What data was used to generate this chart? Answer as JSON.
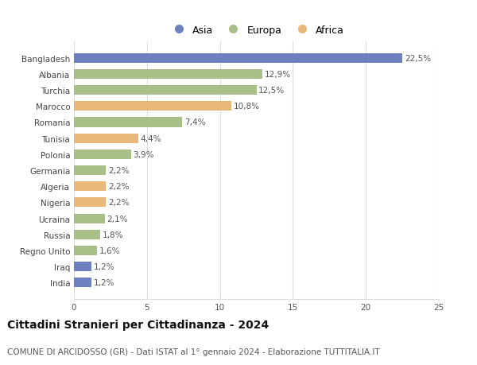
{
  "categories": [
    "Bangladesh",
    "Albania",
    "Turchia",
    "Marocco",
    "Romania",
    "Tunisia",
    "Polonia",
    "Germania",
    "Algeria",
    "Nigeria",
    "Ucraina",
    "Russia",
    "Regno Unito",
    "Iraq",
    "India"
  ],
  "values": [
    22.5,
    12.9,
    12.5,
    10.8,
    7.4,
    4.4,
    3.9,
    2.2,
    2.2,
    2.2,
    2.1,
    1.8,
    1.6,
    1.2,
    1.2
  ],
  "labels": [
    "22,5%",
    "12,9%",
    "12,5%",
    "10,8%",
    "7,4%",
    "4,4%",
    "3,9%",
    "2,2%",
    "2,2%",
    "2,2%",
    "2,1%",
    "1,8%",
    "1,6%",
    "1,2%",
    "1,2%"
  ],
  "continents": [
    "Asia",
    "Europa",
    "Europa",
    "Africa",
    "Europa",
    "Africa",
    "Europa",
    "Europa",
    "Africa",
    "Africa",
    "Europa",
    "Europa",
    "Europa",
    "Asia",
    "Asia"
  ],
  "colors": {
    "Asia": "#6e80c0",
    "Europa": "#a8bf87",
    "Africa": "#e8b87a"
  },
  "title": "Cittadini Stranieri per Cittadinanza - 2024",
  "subtitle": "COMUNE DI ARCIDOSSO (GR) - Dati ISTAT al 1° gennaio 2024 - Elaborazione TUTTITALIA.IT",
  "xlim": [
    0,
    25
  ],
  "xticks": [
    0,
    5,
    10,
    15,
    20,
    25
  ],
  "background_color": "#ffffff",
  "grid_color": "#dddddd",
  "bar_height": 0.6,
  "label_fontsize": 7.5,
  "title_fontsize": 10,
  "subtitle_fontsize": 7.5,
  "tick_fontsize": 7.5,
  "legend_fontsize": 9,
  "ytick_fontsize": 7.5
}
